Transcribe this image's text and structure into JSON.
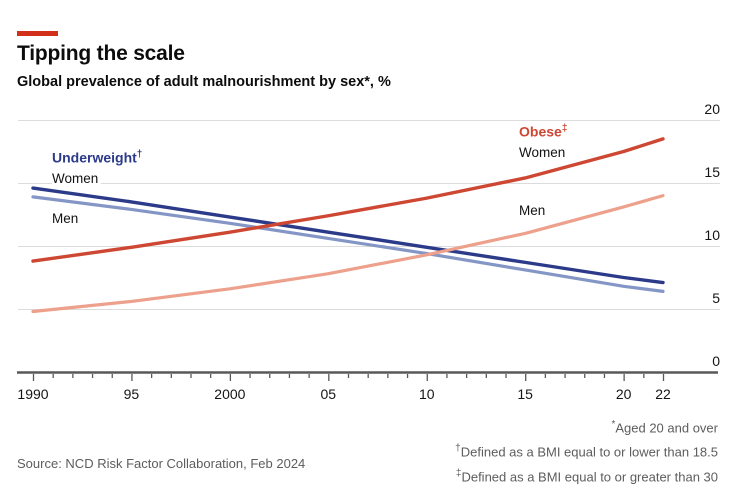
{
  "header": {
    "accent_color": "#d2301a",
    "title": "Tipping the scale",
    "subtitle": "Global prevalence of adult malnourishment by sex*, %"
  },
  "chart_data": {
    "type": "line",
    "x": [
      1990,
      1995,
      2000,
      2005,
      2010,
      2015,
      2020,
      2022
    ],
    "series": [
      {
        "name": "Underweight Women",
        "color": "#2c3a8a",
        "width": 3.4,
        "values": [
          14.6,
          13.5,
          12.3,
          11.1,
          9.9,
          8.7,
          7.5,
          7.1
        ]
      },
      {
        "name": "Underweight Men",
        "color": "#8496c6",
        "width": 3.2,
        "values": [
          13.9,
          12.9,
          11.8,
          10.6,
          9.4,
          8.1,
          6.8,
          6.4
        ]
      },
      {
        "name": "Obese Women",
        "color": "#cd4733",
        "width": 3.4,
        "values": [
          8.8,
          9.9,
          11.1,
          12.4,
          13.8,
          15.4,
          17.5,
          18.5
        ]
      },
      {
        "name": "Obese Men",
        "color": "#eda08b",
        "width": 3.2,
        "values": [
          4.8,
          5.6,
          6.6,
          7.8,
          9.3,
          11.0,
          13.1,
          14.0
        ]
      }
    ],
    "ylim": [
      0,
      20
    ],
    "yticks": [
      0,
      5,
      10,
      15,
      20
    ],
    "xticks": [
      [
        1990,
        "1990"
      ],
      [
        1995,
        "95"
      ],
      [
        2000,
        "2000"
      ],
      [
        2005,
        "05"
      ],
      [
        2010,
        "10"
      ],
      [
        2015,
        "15"
      ],
      [
        2020,
        "20"
      ],
      [
        2022,
        "22"
      ]
    ],
    "minor_xticks_every_year": true,
    "grid": true,
    "grid_color": "#dcdcdc",
    "axis_color": "#585858",
    "legend_position": "inline-labels"
  },
  "labels": {
    "underweight": {
      "text": "Underweight",
      "sup": "†",
      "women": "Women",
      "men": "Men",
      "color": "#2c3a8a"
    },
    "obese": {
      "text": "Obese",
      "sup": "‡",
      "women": "Women",
      "men": "Men",
      "color": "#cd4733"
    }
  },
  "footnotes": [
    {
      "sup": "*",
      "text": "Aged 20 and over"
    },
    {
      "sup": "†",
      "text": "Defined as a BMI equal to or lower than 18.5"
    },
    {
      "sup": "‡",
      "text": "Defined as a BMI equal to or greater than 30"
    }
  ],
  "source": "Source: NCD Risk Factor Collaboration, Feb 2024"
}
